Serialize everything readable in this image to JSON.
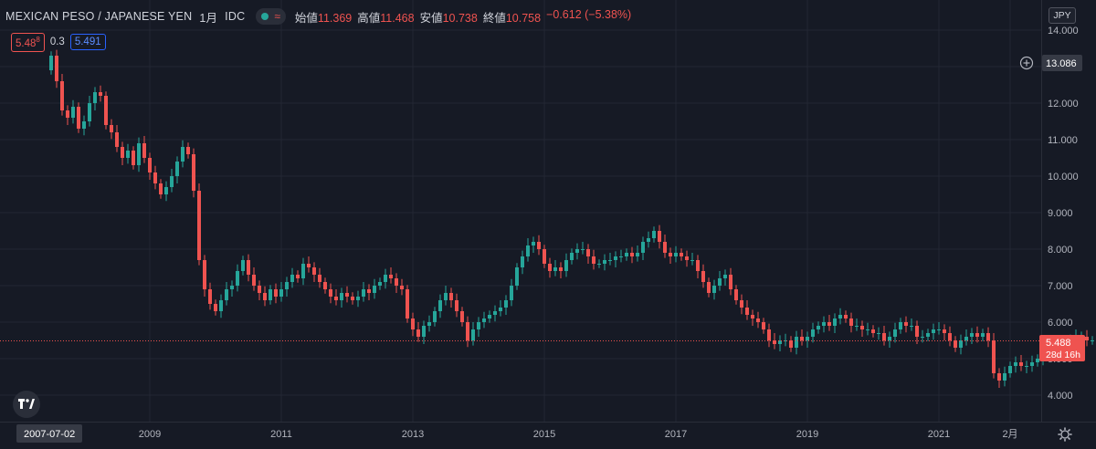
{
  "legend": {
    "symbol": "MEXICAN PESO / JAPANESE YEN",
    "interval": "1月",
    "source": "IDC",
    "ohlc": [
      {
        "label": "始値",
        "value": "11.369"
      },
      {
        "label": "高値",
        "value": "11.468"
      },
      {
        "label": "安値",
        "value": "10.738"
      },
      {
        "label": "終値",
        "value": "10.758"
      }
    ],
    "change": "−0.612 (−5.38%)"
  },
  "quote": {
    "sell": "5.48",
    "sell_small": "8",
    "spread": "0.3",
    "buy": "5.491"
  },
  "currency_button": "JPY",
  "crosshair": {
    "price_label": "13.086",
    "price": 13.086,
    "date_label": "2007-07-02"
  },
  "last_price": {
    "label": "5.488",
    "countdown": "28d 16h",
    "price": 5.488
  },
  "icons": {
    "plus": "plus-circle-icon",
    "settings": "gear-icon",
    "logo": "tradingview-logo-icon",
    "alert": "wave-icon"
  },
  "colors": {
    "up": "#26a69a",
    "down": "#ef5350",
    "background": "#161a25",
    "grid": "#232734"
  },
  "chart_data": {
    "type": "candlestick",
    "title": "MEXICAN PESO / JAPANESE YEN",
    "interval": "monthly",
    "ylim": [
      3.7,
      14.0
    ],
    "yticks": [
      4.0,
      5.0,
      6.0,
      7.0,
      8.0,
      9.0,
      10.0,
      11.0,
      12.0,
      13.0,
      14.0
    ],
    "ytick_labels": [
      "4.000",
      "5.000",
      "6.000",
      "7.000",
      "8.000",
      "9.000",
      "10.000",
      "11.000",
      "12.000",
      "13.000",
      "14.000"
    ],
    "x_labels": [
      "2009",
      "2011",
      "2013",
      "2015",
      "2017",
      "2019",
      "2021",
      "2月"
    ],
    "x_label_dates": [
      "2009-01",
      "2011-01",
      "2013-01",
      "2015-01",
      "2017-01",
      "2019-01",
      "2021-01",
      "2022-02"
    ],
    "start": "2007-07",
    "end": "2022-02",
    "closes": [
      13.3,
      12.6,
      11.8,
      11.6,
      11.9,
      11.3,
      11.5,
      12.0,
      12.3,
      12.2,
      11.4,
      11.2,
      10.8,
      10.5,
      10.7,
      10.3,
      10.9,
      10.5,
      10.1,
      9.8,
      9.5,
      9.7,
      10.0,
      10.4,
      10.8,
      10.6,
      9.6,
      7.7,
      6.9,
      6.5,
      6.3,
      6.6,
      6.9,
      7.0,
      7.4,
      7.7,
      7.3,
      7.0,
      6.8,
      6.6,
      6.9,
      6.7,
      6.9,
      7.1,
      7.3,
      7.2,
      7.6,
      7.5,
      7.3,
      7.1,
      6.9,
      6.7,
      6.6,
      6.8,
      6.7,
      6.6,
      6.7,
      6.9,
      6.8,
      7.0,
      7.1,
      7.3,
      7.2,
      7.0,
      6.9,
      6.1,
      5.8,
      5.6,
      5.9,
      6.0,
      6.3,
      6.6,
      6.8,
      6.6,
      6.3,
      6.0,
      5.5,
      5.8,
      6.0,
      6.1,
      6.2,
      6.3,
      6.4,
      6.6,
      7.0,
      7.5,
      7.8,
      8.1,
      8.2,
      8.0,
      7.6,
      7.4,
      7.5,
      7.4,
      7.7,
      7.9,
      8.0,
      8.0,
      7.8,
      7.6,
      7.6,
      7.7,
      7.7,
      7.8,
      7.8,
      7.9,
      7.8,
      7.9,
      8.2,
      8.3,
      8.5,
      8.2,
      7.9,
      7.8,
      7.9,
      7.8,
      7.7,
      7.7,
      7.4,
      7.1,
      6.8,
      7.0,
      7.2,
      7.3,
      6.9,
      6.6,
      6.4,
      6.2,
      6.1,
      6.0,
      5.8,
      5.5,
      5.4,
      5.5,
      5.5,
      5.3,
      5.6,
      5.5,
      5.6,
      5.8,
      5.9,
      6.0,
      5.9,
      6.1,
      6.2,
      6.1,
      5.9,
      5.9,
      5.8,
      5.8,
      5.7,
      5.7,
      5.5,
      5.6,
      5.8,
      6.0,
      5.9,
      5.9,
      5.6,
      5.6,
      5.7,
      5.8,
      5.8,
      5.7,
      5.5,
      5.3,
      5.5,
      5.6,
      5.7,
      5.6,
      5.7,
      5.5,
      4.6,
      4.4,
      4.6,
      4.8,
      4.9,
      4.8,
      4.8,
      4.9,
      5.0,
      5.2,
      5.3,
      5.2,
      5.3,
      5.4,
      5.5,
      5.6,
      5.6,
      5.5,
      5.5
    ]
  }
}
